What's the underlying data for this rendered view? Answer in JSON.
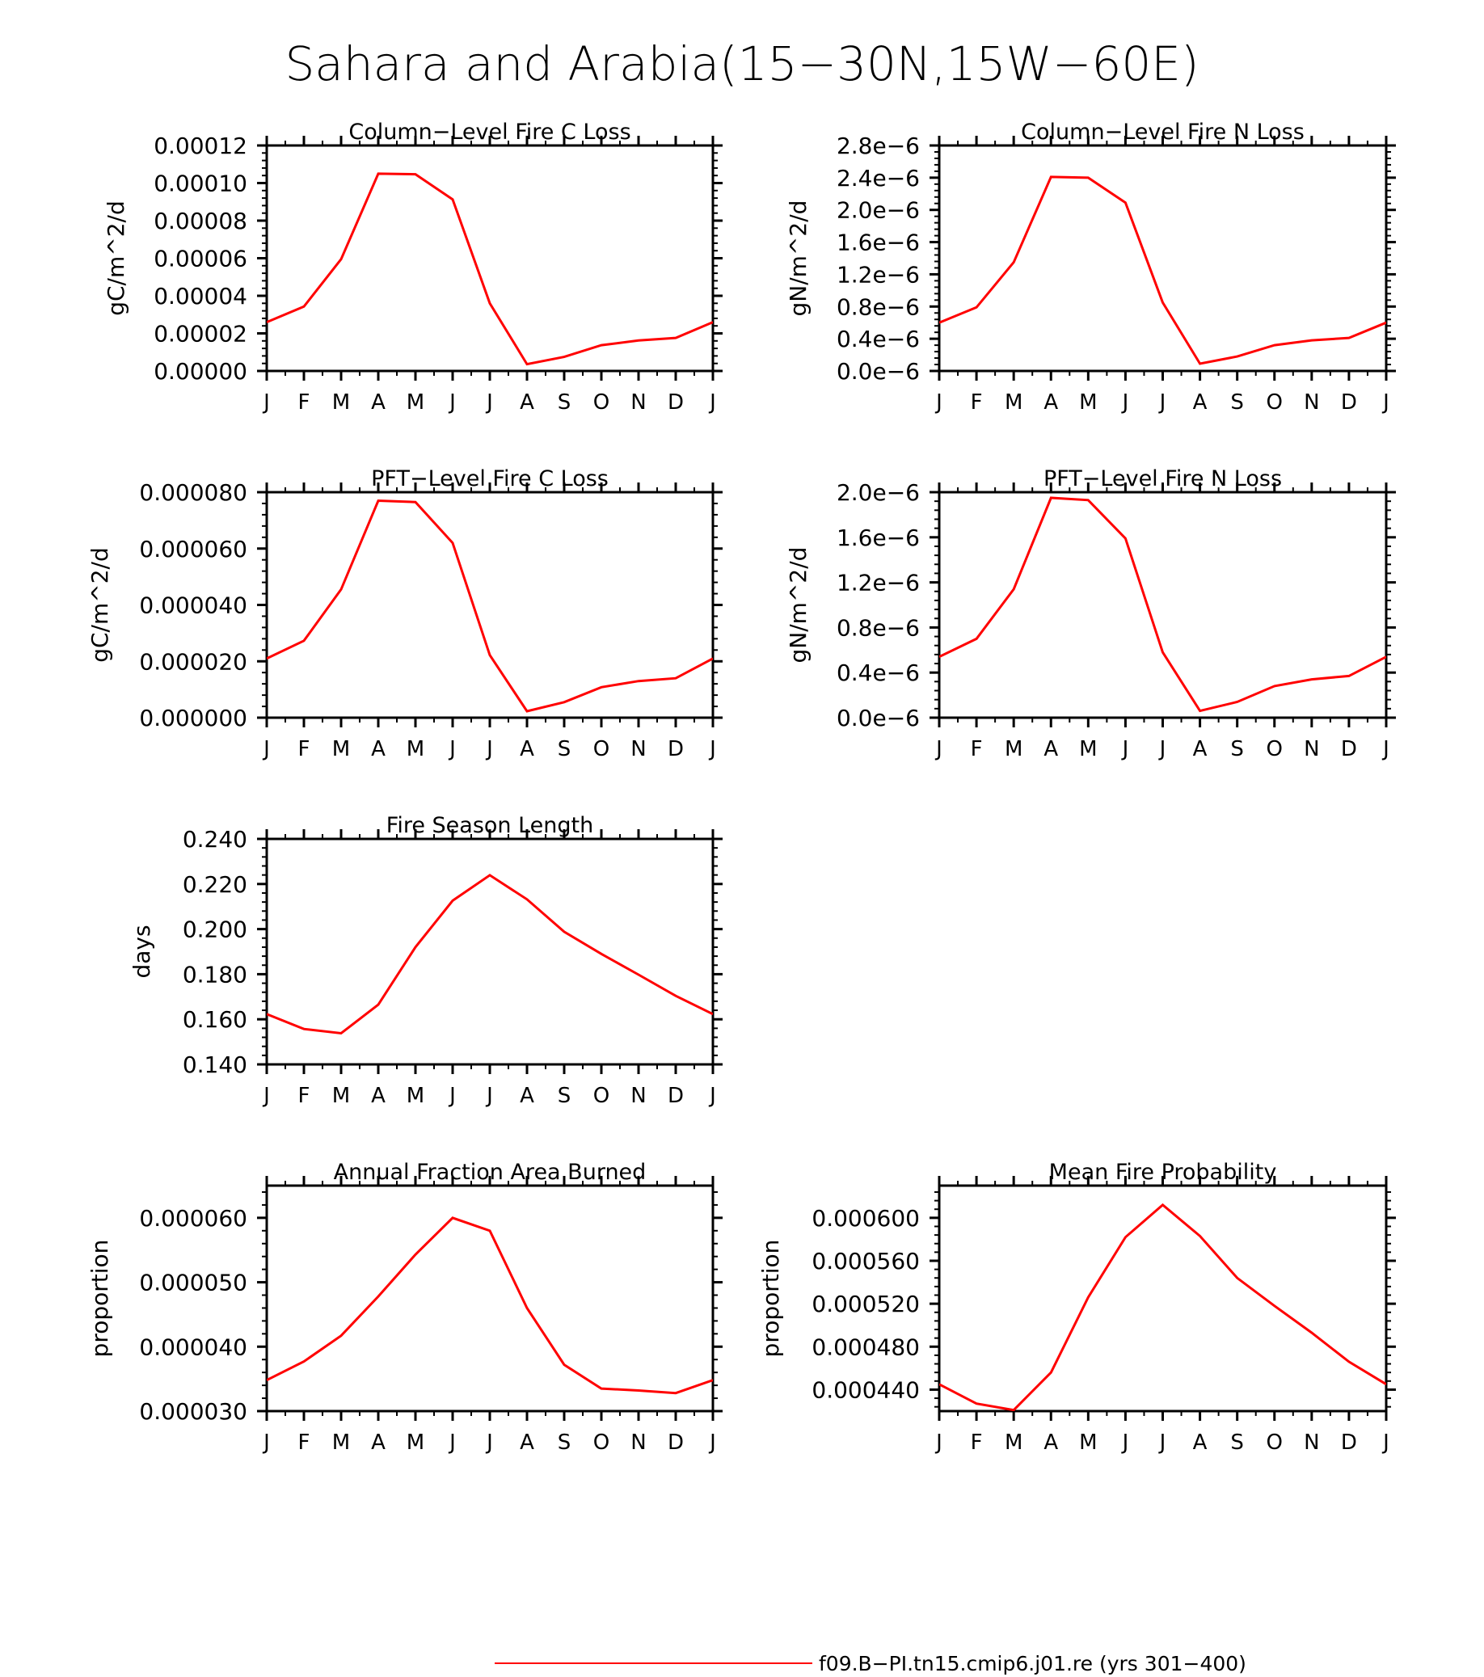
{
  "figure": {
    "title": "Sahara and Arabia(15−30N,15W−60E)",
    "legend": {
      "label": "f09.B−PI.tn15.cmip6.j01.re (yrs 301−400)",
      "color": "#ff0000"
    }
  },
  "chart_data": [
    {
      "type": "line",
      "title": "Column−Level Fire C Loss",
      "ylabel": "gC/m^2/d",
      "categories": [
        "J",
        "F",
        "M",
        "A",
        "M",
        "J",
        "J",
        "A",
        "S",
        "O",
        "N",
        "D",
        "J"
      ],
      "ylim": [
        0,
        0.00012
      ],
      "yticks": [
        0,
        2e-05,
        4e-05,
        6e-05,
        8e-05,
        0.0001,
        0.00012
      ],
      "yticklabels": [
        "0.00000",
        "0.00002",
        "0.00004",
        "0.00006",
        "0.00008",
        "0.00010",
        "0.00012"
      ],
      "series": [
        {
          "values": [
            2.6e-05,
            3.43e-05,
            5.95e-05,
            0.000105,
            0.0001047,
            9.13e-05,
            3.6e-05,
            3.6e-06,
            7.5e-06,
            1.37e-05,
            1.62e-05,
            1.76e-05,
            2.6e-05
          ],
          "color": "#ff0000"
        }
      ]
    },
    {
      "type": "line",
      "title": "Column−Level Fire N Loss",
      "ylabel": "gN/m^2/d",
      "categories": [
        "J",
        "F",
        "M",
        "A",
        "M",
        "J",
        "J",
        "A",
        "S",
        "O",
        "N",
        "D",
        "J"
      ],
      "ylim": [
        0,
        2.8e-06
      ],
      "yticks": [
        0,
        4e-07,
        8e-07,
        1.2e-06,
        1.6e-06,
        2e-06,
        2.4e-06,
        2.8e-06
      ],
      "yticklabels": [
        "0.0e−6",
        "0.4e−6",
        "0.8e−6",
        "1.2e−6",
        "1.6e−6",
        "2.0e−6",
        "2.4e−6",
        "2.8e−6"
      ],
      "series": [
        {
          "values": [
            6e-07,
            7.9e-07,
            1.35e-06,
            2.41e-06,
            2.4e-06,
            2.09e-06,
            8.5e-07,
            9e-08,
            1.8e-07,
            3.2e-07,
            3.8e-07,
            4.1e-07,
            6e-07
          ],
          "color": "#ff0000"
        }
      ]
    },
    {
      "type": "line",
      "title": "PFT−Level Fire C Loss",
      "ylabel": "gC/m^2/d",
      "categories": [
        "J",
        "F",
        "M",
        "A",
        "M",
        "J",
        "J",
        "A",
        "S",
        "O",
        "N",
        "D",
        "J"
      ],
      "ylim": [
        0,
        8e-05
      ],
      "yticks": [
        0,
        2e-05,
        4e-05,
        6e-05,
        8e-05
      ],
      "yticklabels": [
        "0.000000",
        "0.000020",
        "0.000040",
        "0.000060",
        "0.000080"
      ],
      "series": [
        {
          "values": [
            2.1e-05,
            2.73e-05,
            4.55e-05,
            7.7e-05,
            7.65e-05,
            6.2e-05,
            2.22e-05,
            2.3e-06,
            5.5e-06,
            1.08e-05,
            1.3e-05,
            1.4e-05,
            2.1e-05
          ],
          "color": "#ff0000"
        }
      ]
    },
    {
      "type": "line",
      "title": "PFT−Level Fire N Loss",
      "ylabel": "gN/m^2/d",
      "categories": [
        "J",
        "F",
        "M",
        "A",
        "M",
        "J",
        "J",
        "A",
        "S",
        "O",
        "N",
        "D",
        "J"
      ],
      "ylim": [
        0,
        2e-06
      ],
      "yticks": [
        0,
        4e-07,
        8e-07,
        1.2e-06,
        1.6e-06,
        2e-06
      ],
      "yticklabels": [
        "0.0e−6",
        "0.4e−6",
        "0.8e−6",
        "1.2e−6",
        "1.6e−6",
        "2.0e−6"
      ],
      "series": [
        {
          "values": [
            5.4e-07,
            7e-07,
            1.14e-06,
            1.95e-06,
            1.93e-06,
            1.59e-06,
            5.8e-07,
            6e-08,
            1.4e-07,
            2.8e-07,
            3.4e-07,
            3.7e-07,
            5.4e-07
          ],
          "color": "#ff0000"
        }
      ]
    },
    {
      "type": "line",
      "title": "Fire Season Length",
      "ylabel": "days",
      "categories": [
        "J",
        "F",
        "M",
        "A",
        "M",
        "J",
        "J",
        "A",
        "S",
        "O",
        "N",
        "D",
        "J"
      ],
      "ylim": [
        0.14,
        0.24
      ],
      "yticks": [
        0.14,
        0.16,
        0.18,
        0.2,
        0.22,
        0.24
      ],
      "yticklabels": [
        "0.140",
        "0.160",
        "0.180",
        "0.200",
        "0.220",
        "0.240"
      ],
      "series": [
        {
          "values": [
            0.1623,
            0.1557,
            0.1538,
            0.1665,
            0.192,
            0.2126,
            0.2239,
            0.2132,
            0.1988,
            0.189,
            0.1798,
            0.1704,
            0.1623
          ],
          "color": "#ff0000"
        }
      ]
    },
    {
      "type": "line",
      "title": "Annual Fraction Area Burned",
      "ylabel": "proportion",
      "categories": [
        "J",
        "F",
        "M",
        "A",
        "M",
        "J",
        "J",
        "A",
        "S",
        "O",
        "N",
        "D",
        "J"
      ],
      "ylim": [
        3e-05,
        6.5e-05
      ],
      "yticks": [
        3e-05,
        4e-05,
        5e-05,
        6e-05
      ],
      "yticklabels": [
        "0.000030",
        "0.000040",
        "0.000050",
        "0.000060"
      ],
      "series": [
        {
          "values": [
            3.48e-05,
            3.77e-05,
            4.17e-05,
            4.78e-05,
            5.43e-05,
            6e-05,
            5.8e-05,
            4.6e-05,
            3.72e-05,
            3.35e-05,
            3.32e-05,
            3.28e-05,
            3.48e-05
          ],
          "color": "#ff0000"
        }
      ]
    },
    {
      "type": "line",
      "title": "Mean Fire Probability",
      "ylabel": "proportion",
      "categories": [
        "J",
        "F",
        "M",
        "A",
        "M",
        "J",
        "J",
        "A",
        "S",
        "O",
        "N",
        "D",
        "J"
      ],
      "ylim": [
        0.00042,
        0.00063
      ],
      "yticks": [
        0.00044,
        0.00048,
        0.00052,
        0.00056,
        0.0006
      ],
      "yticklabels": [
        "0.000440",
        "0.000480",
        "0.000520",
        "0.000560",
        "0.000600"
      ],
      "series": [
        {
          "values": [
            0.000445,
            0.000427,
            0.000421,
            0.000456,
            0.000526,
            0.000582,
            0.000612,
            0.000583,
            0.000544,
            0.000518,
            0.000493,
            0.000466,
            0.000445
          ],
          "color": "#ff0000"
        }
      ]
    }
  ]
}
